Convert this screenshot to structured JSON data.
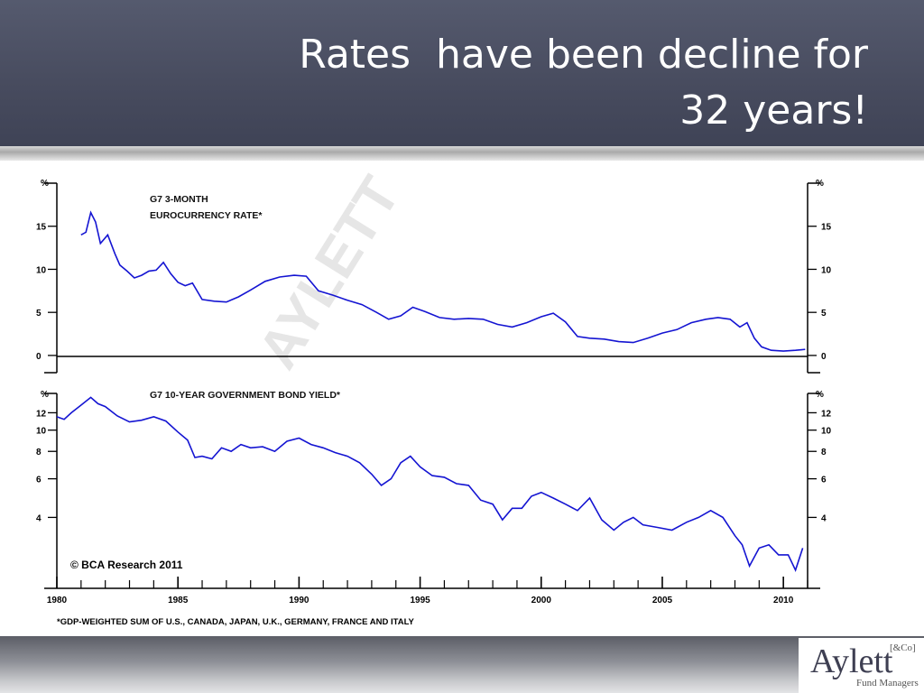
{
  "slide": {
    "title_line1": "Rates  have been decline for",
    "title_line2": "32 years!"
  },
  "logo": {
    "main": "Aylett",
    "co": "[&Co]",
    "sub": "Fund Managers"
  },
  "watermark": "AYLETT",
  "credit": "© BCA Research 2011",
  "footnote": "*GDP-WEIGHTED SUM OF U.S., CANADA, JAPAN, U.K., GERMANY, FRANCE AND ITALY",
  "colors": {
    "series": "#1414d2",
    "header": "#4a4e62"
  },
  "chart_data": [
    {
      "type": "line",
      "title": "G7 3-MONTH",
      "subtitle": "EUROCURRENCY RATE*",
      "unit_label": "%",
      "x_ticks": [
        "1980",
        "1985",
        "1990",
        "1995",
        "2000",
        "2005",
        "2010"
      ],
      "y_ticks": [
        0,
        5,
        10,
        15
      ],
      "xlim": [
        1980,
        2011
      ],
      "ylim": [
        -2,
        20
      ],
      "series": [
        {
          "x": [
            1981.0,
            1981.2,
            1981.4,
            1981.6,
            1981.8,
            1982.1,
            1982.4,
            1982.6,
            1982.9,
            1983.2,
            1983.5,
            1983.8,
            1984.1,
            1984.4,
            1984.7,
            1985.0,
            1985.3,
            1985.6,
            1986.0,
            1986.5,
            1987.0,
            1987.5,
            1988.0,
            1988.6,
            1989.2,
            1989.8,
            1990.3,
            1990.8,
            1991.4,
            1992.0,
            1992.6,
            1993.2,
            1993.7,
            1994.2,
            1994.7,
            1995.2,
            1995.8,
            1996.4,
            1997.0,
            1997.6,
            1998.2,
            1998.8,
            1999.4,
            2000.0,
            2000.5,
            2001.0,
            2001.5,
            2002.0,
            2002.6,
            2003.2,
            2003.8,
            2004.4,
            2005.0,
            2005.6,
            2006.2,
            2006.8,
            2007.3,
            2007.8,
            2008.2,
            2008.5,
            2008.8,
            2009.1,
            2009.5,
            2010.0,
            2010.5,
            2010.9
          ],
          "values": [
            14.0,
            14.3,
            16.6,
            15.5,
            13.0,
            14.0,
            11.8,
            10.5,
            9.8,
            9.0,
            9.3,
            9.8,
            9.9,
            10.8,
            9.5,
            8.5,
            8.1,
            8.4,
            6.5,
            6.3,
            6.2,
            6.8,
            7.6,
            8.6,
            9.1,
            9.3,
            9.2,
            7.5,
            7.0,
            6.4,
            5.9,
            5.0,
            4.2,
            4.6,
            5.6,
            5.1,
            4.4,
            4.2,
            4.3,
            4.2,
            3.6,
            3.3,
            3.8,
            4.5,
            4.9,
            3.9,
            2.2,
            2.0,
            1.9,
            1.6,
            1.5,
            2.0,
            2.6,
            3.0,
            3.8,
            4.2,
            4.4,
            4.2,
            3.3,
            3.8,
            2.0,
            1.0,
            0.6,
            0.5,
            0.6,
            0.7
          ]
        }
      ]
    },
    {
      "type": "line",
      "title": "G7 10-YEAR GOVERNMENT BOND YIELD*",
      "unit_label": "%",
      "x_ticks": [
        "1980",
        "1985",
        "1990",
        "1995",
        "2000",
        "2005",
        "2010"
      ],
      "y_ticks": [
        4,
        6,
        8,
        10,
        12
      ],
      "y_scale": "log",
      "xlim": [
        1980,
        2011
      ],
      "ylim": [
        1.9,
        14.7
      ],
      "series": [
        {
          "x": [
            1980.0,
            1980.3,
            1980.6,
            1981.0,
            1981.4,
            1981.7,
            1982.0,
            1982.5,
            1983.0,
            1983.5,
            1984.0,
            1984.5,
            1985.0,
            1985.4,
            1985.7,
            1986.0,
            1986.4,
            1986.8,
            1987.2,
            1987.6,
            1988.0,
            1988.5,
            1989.0,
            1989.5,
            1990.0,
            1990.5,
            1991.0,
            1991.5,
            1992.0,
            1992.5,
            1993.0,
            1993.4,
            1993.8,
            1994.2,
            1994.6,
            1995.0,
            1995.5,
            1996.0,
            1996.5,
            1997.0,
            1997.5,
            1998.0,
            1998.4,
            1998.8,
            1999.2,
            1999.6,
            2000.0,
            2000.5,
            2001.0,
            2001.5,
            2002.0,
            2002.5,
            2003.0,
            2003.4,
            2003.8,
            2004.2,
            2004.8,
            2005.4,
            2006.0,
            2006.5,
            2007.0,
            2007.5,
            2008.0,
            2008.3,
            2008.6,
            2009.0,
            2009.4,
            2009.8,
            2010.2,
            2010.5,
            2010.8
          ],
          "values": [
            11.5,
            11.2,
            12.0,
            13.0,
            14.1,
            13.2,
            12.8,
            11.6,
            10.9,
            11.1,
            11.5,
            11.0,
            9.8,
            9.0,
            7.5,
            7.6,
            7.4,
            8.3,
            8.0,
            8.6,
            8.3,
            8.4,
            8.0,
            8.9,
            9.2,
            8.6,
            8.3,
            7.9,
            7.6,
            7.1,
            6.3,
            5.6,
            6.0,
            7.1,
            7.6,
            6.8,
            6.2,
            6.1,
            5.7,
            5.6,
            4.8,
            4.6,
            3.9,
            4.4,
            4.4,
            5.0,
            5.2,
            4.9,
            4.6,
            4.3,
            4.9,
            3.9,
            3.5,
            3.8,
            4.0,
            3.7,
            3.6,
            3.5,
            3.8,
            4.0,
            4.3,
            4.0,
            3.3,
            3.0,
            2.4,
            2.9,
            3.0,
            2.7,
            2.7,
            2.3,
            2.9
          ]
        }
      ]
    }
  ]
}
